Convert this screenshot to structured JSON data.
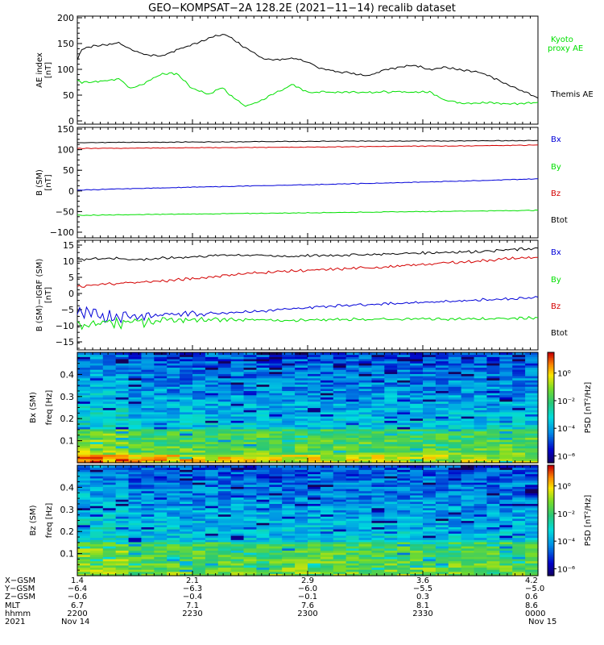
{
  "title": "GEO−KOMPSAT−2A 128.2E (2021−11−14) recalib dataset",
  "colors": {
    "black": "#000000",
    "red": "#d40000",
    "green": "#00e000",
    "blue": "#0000d8"
  },
  "chart_data": [
    {
      "type": "line",
      "ylabel": "AE index",
      "yunit": "[nT]",
      "ylim": [
        0,
        200
      ],
      "yticks": [
        "0",
        "50",
        "100",
        "150",
        "200"
      ],
      "legend": [
        {
          "label": "Kyoto",
          "color": "#00e000"
        },
        {
          "label": "proxy AE",
          "color": "#00e000"
        },
        {
          "label": "Themis AE",
          "color": "#000000"
        }
      ],
      "x_hours": [
        0,
        0.03,
        0.1,
        0.2,
        0.27,
        0.35,
        0.45,
        0.55,
        0.65,
        0.75,
        0.85,
        0.95,
        1.0,
        1.1,
        1.2,
        1.3,
        1.4,
        1.5,
        1.6,
        1.7,
        1.8,
        1.9,
        2.0,
        2.1,
        2.2,
        2.3,
        2.4,
        2.5,
        2.6,
        2.7,
        2.8,
        2.9,
        3.0
      ],
      "series": [
        {
          "name": "Themis AE",
          "color": "#000000",
          "values": [
            118,
            140,
            145,
            148,
            152,
            138,
            128,
            126,
            138,
            148,
            160,
            168,
            162,
            140,
            122,
            118,
            122,
            114,
            100,
            96,
            92,
            88,
            100,
            104,
            108,
            100,
            104,
            98,
            95,
            85,
            70,
            58,
            45
          ]
        },
        {
          "name": "Kyoto proxy AE",
          "color": "#00e000",
          "values": [
            79,
            75,
            76,
            78,
            82,
            63,
            75,
            92,
            92,
            62,
            52,
            65,
            48,
            28,
            40,
            56,
            70,
            56,
            56,
            56,
            56,
            56,
            56,
            56,
            56,
            56,
            40,
            35,
            35,
            35,
            33,
            34,
            36
          ]
        }
      ]
    },
    {
      "type": "line",
      "ylabel": "B (SM)",
      "yunit": "[nT]",
      "ylim": [
        -100,
        150
      ],
      "yticks": [
        "−100",
        "−50",
        "0",
        "50",
        "100",
        "150"
      ],
      "legend": [
        {
          "label": "Bx",
          "color": "#0000d8"
        },
        {
          "label": "By",
          "color": "#00e000"
        },
        {
          "label": "Bz",
          "color": "#d40000"
        },
        {
          "label": "Btot",
          "color": "#000000"
        }
      ],
      "x_hours": [
        0,
        0.5,
        1.0,
        1.5,
        2.0,
        2.5,
        3.0
      ],
      "series": [
        {
          "name": "Btot",
          "color": "#000000",
          "values": [
            117,
            118,
            119,
            120,
            121,
            121,
            122
          ]
        },
        {
          "name": "Bz",
          "color": "#d40000",
          "values": [
            103,
            104,
            105,
            106,
            108,
            109,
            111
          ]
        },
        {
          "name": "Bx",
          "color": "#0000d8",
          "values": [
            2,
            7,
            11,
            15,
            19,
            24,
            29
          ]
        },
        {
          "name": "By",
          "color": "#00e000",
          "values": [
            -59,
            -57,
            -55,
            -53,
            -51,
            -49,
            -47
          ]
        }
      ]
    },
    {
      "type": "line",
      "ylabel": "B (SM)−IGRF (SM)",
      "yunit": "[nT]",
      "ylim": [
        -17,
        16
      ],
      "yticks": [
        "−15",
        "−10",
        "−5",
        "0",
        "5",
        "10",
        "15"
      ],
      "legend": [
        {
          "label": "Bx",
          "color": "#0000d8"
        },
        {
          "label": "By",
          "color": "#00e000"
        },
        {
          "label": "Bz",
          "color": "#d40000"
        },
        {
          "label": "Btot",
          "color": "#000000"
        }
      ],
      "x_hours": [
        0,
        0.2,
        0.4,
        0.6,
        0.8,
        1.0,
        1.2,
        1.4,
        1.6,
        1.8,
        2.0,
        2.2,
        2.4,
        2.6,
        2.8,
        3.0
      ],
      "series": [
        {
          "name": "Btot",
          "color": "#000000",
          "values": [
            10.5,
            11,
            10.5,
            11,
            11.5,
            12,
            11.8,
            11.5,
            11.8,
            12,
            12.2,
            12.5,
            12.8,
            13,
            13.5,
            14
          ]
        },
        {
          "name": "Bz",
          "color": "#d40000",
          "values": [
            2,
            3,
            3.5,
            4,
            4.8,
            5.8,
            6.5,
            7,
            7.3,
            7.8,
            8.2,
            8.8,
            9.5,
            10,
            10.8,
            11.2
          ]
        },
        {
          "name": "Bx",
          "color": "#0000d8",
          "values": [
            -6.5,
            -7,
            -6.8,
            -6.5,
            -6.2,
            -5.8,
            -5.5,
            -4.8,
            -4,
            -3.5,
            -3.2,
            -2.8,
            -2.5,
            -2,
            -1.7,
            -1.3
          ]
        },
        {
          "name": "By",
          "color": "#00e000",
          "values": [
            -9.5,
            -9,
            -8.8,
            -8.5,
            -8.2,
            -8,
            -8.3,
            -8.3,
            -8.2,
            -8,
            -8,
            -7.9,
            -7.9,
            -7.9,
            -7.8,
            -7.5
          ]
        }
      ]
    },
    {
      "type": "heatmap",
      "ylabel": "Bx (SM)",
      "yunit2": "freq [Hz]",
      "ylim": [
        0,
        0.5
      ],
      "yticks": [
        "0.1",
        "0.2",
        "0.3",
        "0.4"
      ],
      "colorbar_label": "PSD [nT²/Hz]",
      "colorbar_ticks": [
        "10⁰",
        "10⁻²",
        "10⁻⁴",
        "10⁻⁶"
      ],
      "psd_log_range": [
        -6.5,
        1.5
      ],
      "note": "PSD decreases with frequency; high values below 0.15 Hz, enhanced near 0.01 Hz at start"
    },
    {
      "type": "heatmap",
      "ylabel": "Bz (SM)",
      "yunit2": "freq [Hz]",
      "ylim": [
        0,
        0.5
      ],
      "yticks": [
        "0.1",
        "0.2",
        "0.3",
        "0.4"
      ],
      "colorbar_label": "PSD [nT²/Hz]",
      "colorbar_ticks": [
        "10⁰",
        "10⁻²",
        "10⁻⁴",
        "10⁻⁶"
      ],
      "psd_log_range": [
        -6.5,
        1.5
      ]
    }
  ],
  "axis_table": {
    "row_labels": [
      "X−GSM",
      "Y−GSM",
      "Z−GSM",
      "MLT",
      "hhmm",
      "2021"
    ],
    "columns": [
      [
        "1.4",
        "−6.4",
        "−0.6",
        "6.7",
        "2200",
        "Nov 14"
      ],
      [
        "2.1",
        "−6.3",
        "−0.4",
        "7.1",
        "2230",
        ""
      ],
      [
        "2.9",
        "−6.0",
        "−0.1",
        "7.6",
        "2300",
        ""
      ],
      [
        "3.6",
        "−5.5",
        "0.3",
        "8.1",
        "2330",
        ""
      ],
      [
        "4.2",
        "−5.0",
        "0.6",
        "8.6",
        "0000",
        "Nov 15"
      ]
    ]
  }
}
